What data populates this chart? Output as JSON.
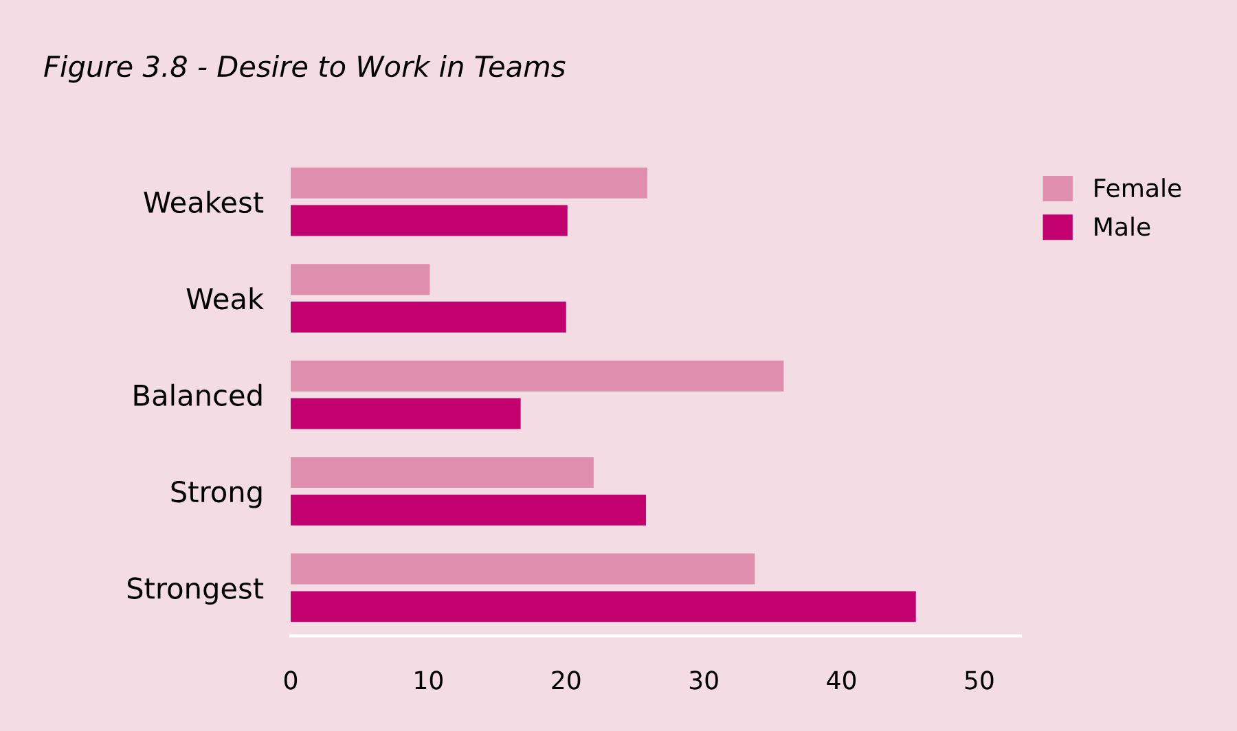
{
  "chart_data": {
    "type": "bar",
    "orientation": "horizontal",
    "title": "Figure 3.8 - Desire to Work in Teams",
    "categories": [
      "Weakest",
      "Weak",
      "Balanced",
      "Strong",
      "Strongest"
    ],
    "series": [
      {
        "name": "Female",
        "color": "#df8eae",
        "values": [
          25.9,
          10.1,
          35.8,
          22.0,
          33.7
        ]
      },
      {
        "name": "Male",
        "color": "#c2006e",
        "values": [
          20.1,
          20.0,
          16.7,
          25.8,
          45.4
        ]
      }
    ],
    "xlim": [
      0,
      53
    ],
    "xticks": [
      0,
      10,
      20,
      30,
      40,
      50
    ],
    "grid": false,
    "legend": "top right"
  }
}
